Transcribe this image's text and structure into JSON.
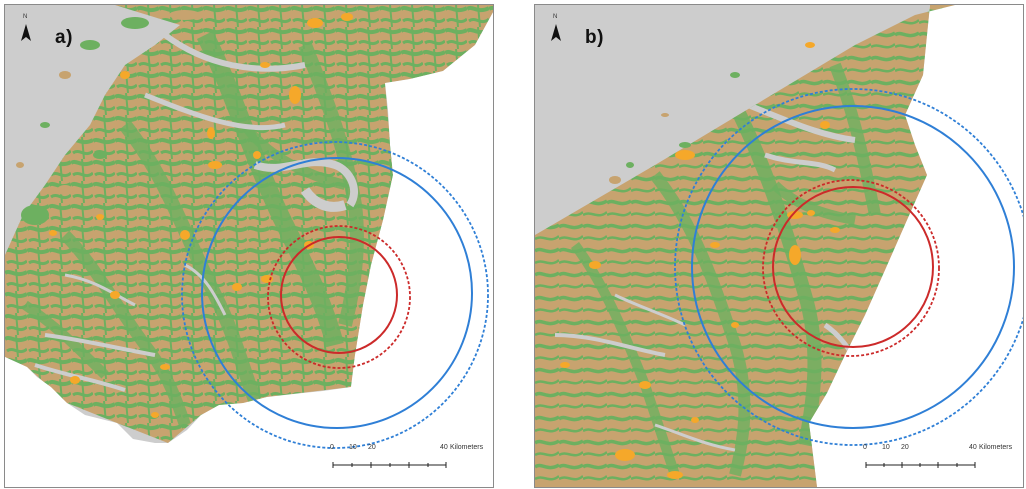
{
  "panels": [
    {
      "label": "a)",
      "north_symbol": "N",
      "scale": {
        "ticks": [
          "0",
          "10",
          "20",
          "40"
        ],
        "unit": "Kilometers"
      },
      "colors": {
        "sea": "#cdcdcd",
        "land_brown": "#c7a36f",
        "land_green": "#6db060",
        "patch_orange": "#f5a82a",
        "outside": "#ffffff"
      },
      "rings": [
        {
          "name": "outer-buffer",
          "color": "#2f7fd6",
          "style": "dashed"
        },
        {
          "name": "outer-zone",
          "color": "#2f7fd6",
          "style": "solid"
        },
        {
          "name": "inner-buffer",
          "color": "#cc2a2a",
          "style": "dashed"
        },
        {
          "name": "inner-zone",
          "color": "#cc2a2a",
          "style": "solid"
        }
      ]
    },
    {
      "label": "b)",
      "north_symbol": "N",
      "scale": {
        "ticks": [
          "0",
          "10",
          "20",
          "40"
        ],
        "unit": "Kilometers"
      },
      "colors": {
        "sea": "#cdcdcd",
        "land_brown": "#c7a36f",
        "land_green": "#6db060",
        "patch_orange": "#f5a82a",
        "outside": "#ffffff"
      },
      "rings": [
        {
          "name": "outer-buffer",
          "color": "#2f7fd6",
          "style": "dashed"
        },
        {
          "name": "outer-zone",
          "color": "#2f7fd6",
          "style": "solid"
        },
        {
          "name": "inner-buffer",
          "color": "#cc2a2a",
          "style": "dashed"
        },
        {
          "name": "inner-zone",
          "color": "#cc2a2a",
          "style": "solid"
        }
      ]
    }
  ]
}
